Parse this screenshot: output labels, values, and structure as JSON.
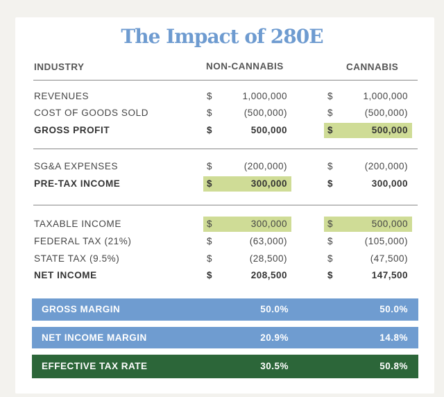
{
  "title": "The Impact of 280E",
  "headers": {
    "industry": "INDUSTRY",
    "non_cannabis": "NON-CANNABIS",
    "cannabis": "CANNABIS"
  },
  "currency": "$",
  "rows": [
    {
      "label": "REVENUES",
      "non_cannabis": "1,000,000",
      "cannabis": "1,000,000",
      "bold": false
    },
    {
      "label": "COST OF GOODS SOLD",
      "non_cannabis": "(500,000)",
      "cannabis": "(500,000)",
      "bold": false
    },
    {
      "label": "GROSS PROFIT",
      "non_cannabis": "500,000",
      "cannabis": "500,000",
      "bold": true,
      "highlight": "cannabis"
    },
    {
      "label": "SG&A EXPENSES",
      "non_cannabis": "(200,000)",
      "cannabis": "(200,000)",
      "bold": false
    },
    {
      "label": "PRE-TAX INCOME",
      "non_cannabis": "300,000",
      "cannabis": "300,000",
      "bold": true,
      "highlight": "non_cannabis"
    },
    {
      "label": "TAXABLE INCOME",
      "non_cannabis": "300,000",
      "cannabis": "500,000",
      "bold": false,
      "highlight": "both"
    },
    {
      "label": "FEDERAL TAX (21%)",
      "non_cannabis": "(63,000)",
      "cannabis": "(105,000)",
      "bold": false
    },
    {
      "label": "STATE TAX (9.5%)",
      "non_cannabis": "(28,500)",
      "cannabis": "(47,500)",
      "bold": false
    },
    {
      "label": "NET INCOME",
      "non_cannabis": "208,500",
      "cannabis": "147,500",
      "bold": true
    }
  ],
  "summary": [
    {
      "label": "GROSS MARGIN",
      "non_cannabis": "50.0%",
      "cannabis": "50.0%",
      "color": "#6f9cd0"
    },
    {
      "label": "NET INCOME MARGIN",
      "non_cannabis": "20.9%",
      "cannabis": "14.8%",
      "color": "#6f9cd0"
    },
    {
      "label": "EFFECTIVE TAX RATE",
      "non_cannabis": "30.5%",
      "cannabis": "50.8%",
      "color": "#2c6639"
    }
  ],
  "colors": {
    "title": "#6e9bd0",
    "highlight": "#cfdc96",
    "background": "#f3f2ee"
  }
}
